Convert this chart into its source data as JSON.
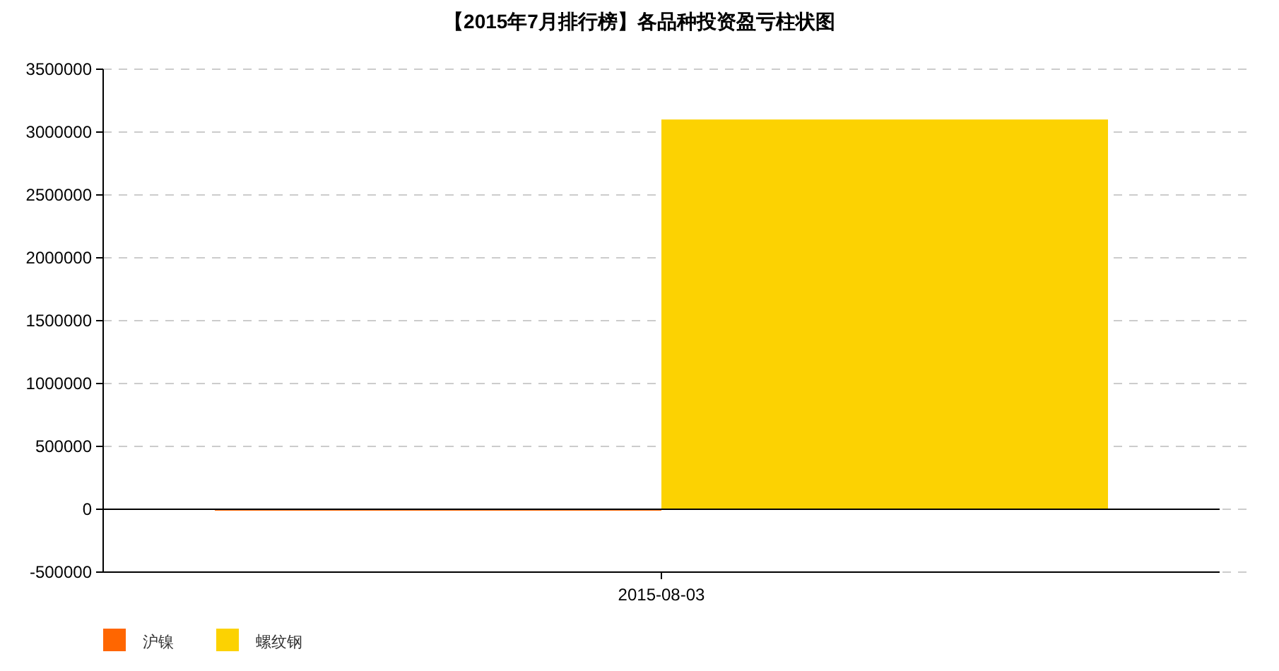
{
  "chart_data": {
    "type": "bar",
    "title": "【2015年7月排行榜】各品种投资盈亏柱状图",
    "categories": [
      "2015-08-03"
    ],
    "series": [
      {
        "name": "沪镍",
        "color": "#ff6600",
        "values": [
          0
        ]
      },
      {
        "name": "螺纹钢",
        "color": "#fcd202",
        "values": [
          3100000
        ]
      }
    ],
    "ylim": [
      -500000,
      3500000
    ],
    "yticks": [
      -500000,
      0,
      500000,
      1000000,
      1500000,
      2000000,
      2500000,
      3000000,
      3500000
    ],
    "grid": "y",
    "legend": "bottom left"
  }
}
